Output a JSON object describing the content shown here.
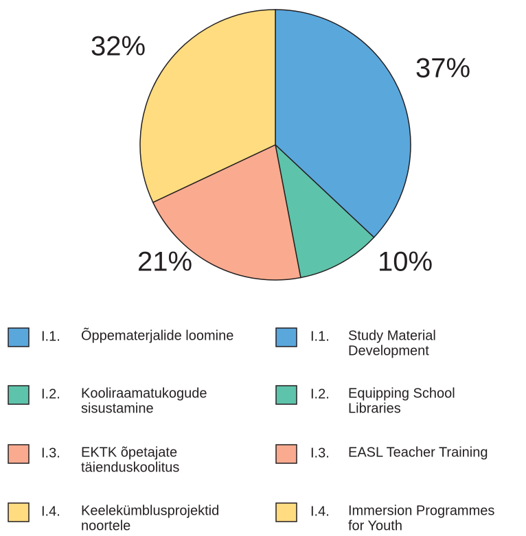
{
  "chart_data": {
    "type": "pie",
    "categories": [
      "I.1.",
      "I.2.",
      "I.3.",
      "I.4."
    ],
    "values": [
      37,
      10,
      21,
      32
    ],
    "value_labels": [
      "37%",
      "10%",
      "21%",
      "32%"
    ],
    "colors": [
      "#5aa7dc",
      "#5ec3ab",
      "#f9aa8f",
      "#fedc7f"
    ],
    "legend": {
      "columns": [
        {
          "labels": [
            [
              "Õppematerjalide loomine"
            ],
            [
              "Kooliraamatukogude",
              "sisustamine"
            ],
            [
              "EKTK õpetajate",
              "täienduskoolitus"
            ],
            [
              "Keelekümblusprojektid",
              "noortele"
            ]
          ]
        },
        {
          "labels": [
            [
              "Study Material",
              "Development"
            ],
            [
              "Equipping School",
              "Libraries"
            ],
            [
              "EASL Teacher Training"
            ],
            [
              "Immersion Programmes",
              "for Youth"
            ]
          ]
        }
      ]
    }
  }
}
